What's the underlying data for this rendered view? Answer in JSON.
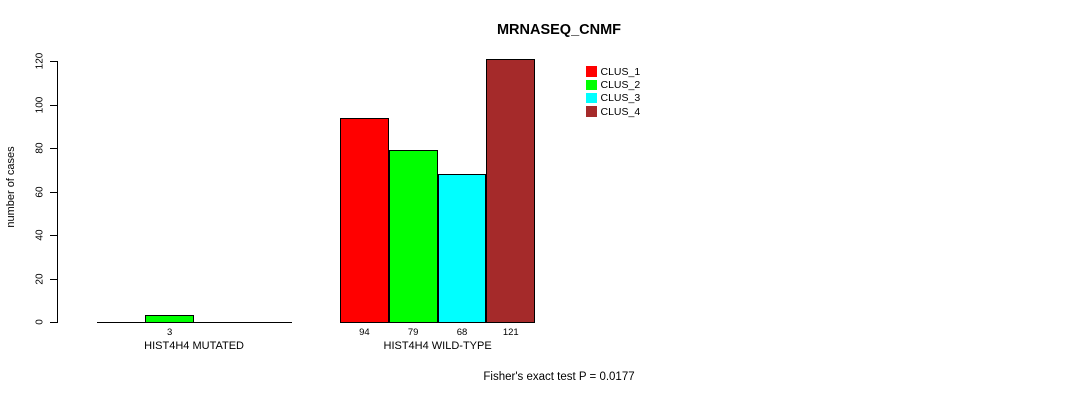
{
  "title": "MRNASEQ_CNMF",
  "footer": "Fisher's exact test P = 0.0177",
  "chart_data": {
    "type": "bar",
    "title": "MRNASEQ_CNMF",
    "xlabel": "",
    "ylabel": "number of cases",
    "ylim": [
      0,
      120
    ],
    "yticks": [
      0,
      20,
      40,
      60,
      80,
      100,
      120
    ],
    "grid": false,
    "legend_position": "top-right",
    "categories": [
      "HIST4H4 MUTATED",
      "HIST4H4 WILD-TYPE"
    ],
    "series": [
      {
        "name": "CLUS_1",
        "color": "#FF0000",
        "values": [
          0,
          94
        ]
      },
      {
        "name": "CLUS_2",
        "color": "#00FF00",
        "values": [
          3,
          79
        ]
      },
      {
        "name": "CLUS_3",
        "color": "#00FFFF",
        "values": [
          0,
          68
        ]
      },
      {
        "name": "CLUS_4",
        "color": "#A52A2A",
        "values": [
          0,
          121
        ]
      }
    ],
    "bar_value_labels": {
      "shown_only_when_positive": true
    },
    "annotation": "Fisher's exact test P = 0.0177"
  }
}
